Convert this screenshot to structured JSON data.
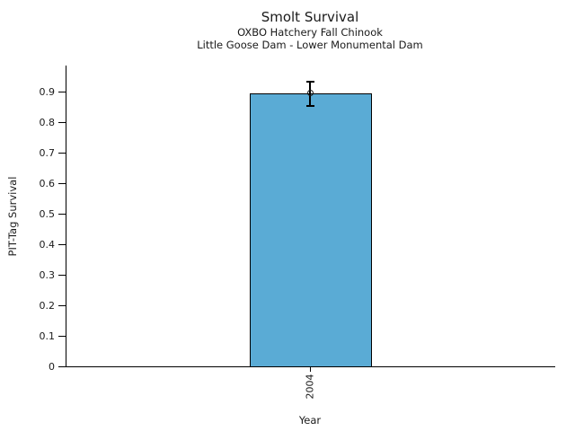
{
  "chart_data": {
    "type": "bar",
    "title": "Smolt Survival",
    "subtitle1": "OXBO Hatchery Fall Chinook",
    "subtitle2": "Little Goose Dam - Lower Monumental Dam",
    "xlabel": "Year",
    "ylabel": "PIT-Tag Survival",
    "categories": [
      "2004"
    ],
    "values": [
      0.895
    ],
    "error_low": [
      0.855
    ],
    "error_high": [
      0.935
    ],
    "ylim": [
      0,
      0.985
    ],
    "yticks": [
      0,
      0.1,
      0.2,
      0.3,
      0.4,
      0.5,
      0.6,
      0.7,
      0.8,
      0.9
    ],
    "ytick_labels": [
      "0",
      "0.1",
      "0.2",
      "0.3",
      "0.4",
      "0.5",
      "0.6",
      "0.7",
      "0.8",
      "0.9"
    ],
    "grid": false,
    "legend_position": "none",
    "marker": "open-circle",
    "bar_color": "#5AABD5",
    "bar_edge_color": "#000000",
    "error_color": "#000000",
    "text_color": "#1a1a1a",
    "background_color": "#ffffff"
  }
}
